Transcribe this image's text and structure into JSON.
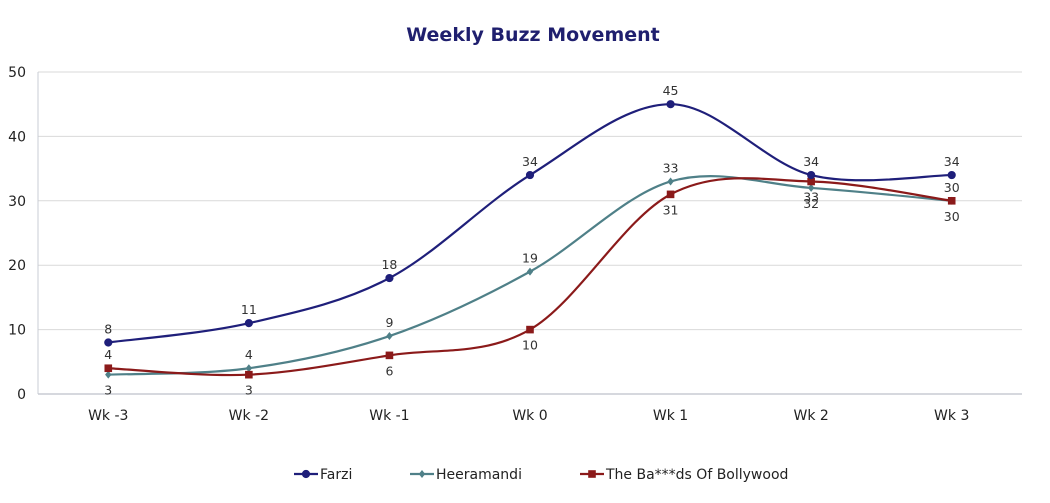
{
  "chart_data": {
    "type": "line",
    "title": "Weekly Buzz Movement",
    "xlabel": "",
    "ylabel": "",
    "categories": [
      "Wk -3",
      "Wk -2",
      "Wk -1",
      "Wk 0",
      "Wk 1",
      "Wk 2",
      "Wk 3"
    ],
    "ylim": [
      0,
      50
    ],
    "yticks": [
      0,
      10,
      20,
      30,
      40,
      50
    ],
    "grid": true,
    "smooth": true,
    "legend_position": "bottom",
    "series": [
      {
        "name": "Farzi",
        "color": "#1f1f7a",
        "marker": "circle",
        "values": [
          8,
          11,
          18,
          34,
          45,
          34,
          34
        ],
        "label_positions": [
          "above",
          "above",
          "above",
          "above",
          "above",
          "above",
          "above"
        ]
      },
      {
        "name": "Heeramandi",
        "color": "#4f8088",
        "marker": "diamond",
        "values": [
          3,
          4,
          9,
          19,
          33,
          32,
          30
        ],
        "label_positions": [
          "below",
          "above",
          "above",
          "above",
          "above",
          "below",
          "above"
        ]
      },
      {
        "name": "The Ba***ds Of Bollywood",
        "color": "#8b1a1a",
        "marker": "square",
        "values": [
          4,
          3,
          6,
          10,
          31,
          33,
          30
        ],
        "label_positions": [
          "above",
          "below",
          "below",
          "below",
          "below",
          "below",
          "below"
        ]
      }
    ]
  }
}
